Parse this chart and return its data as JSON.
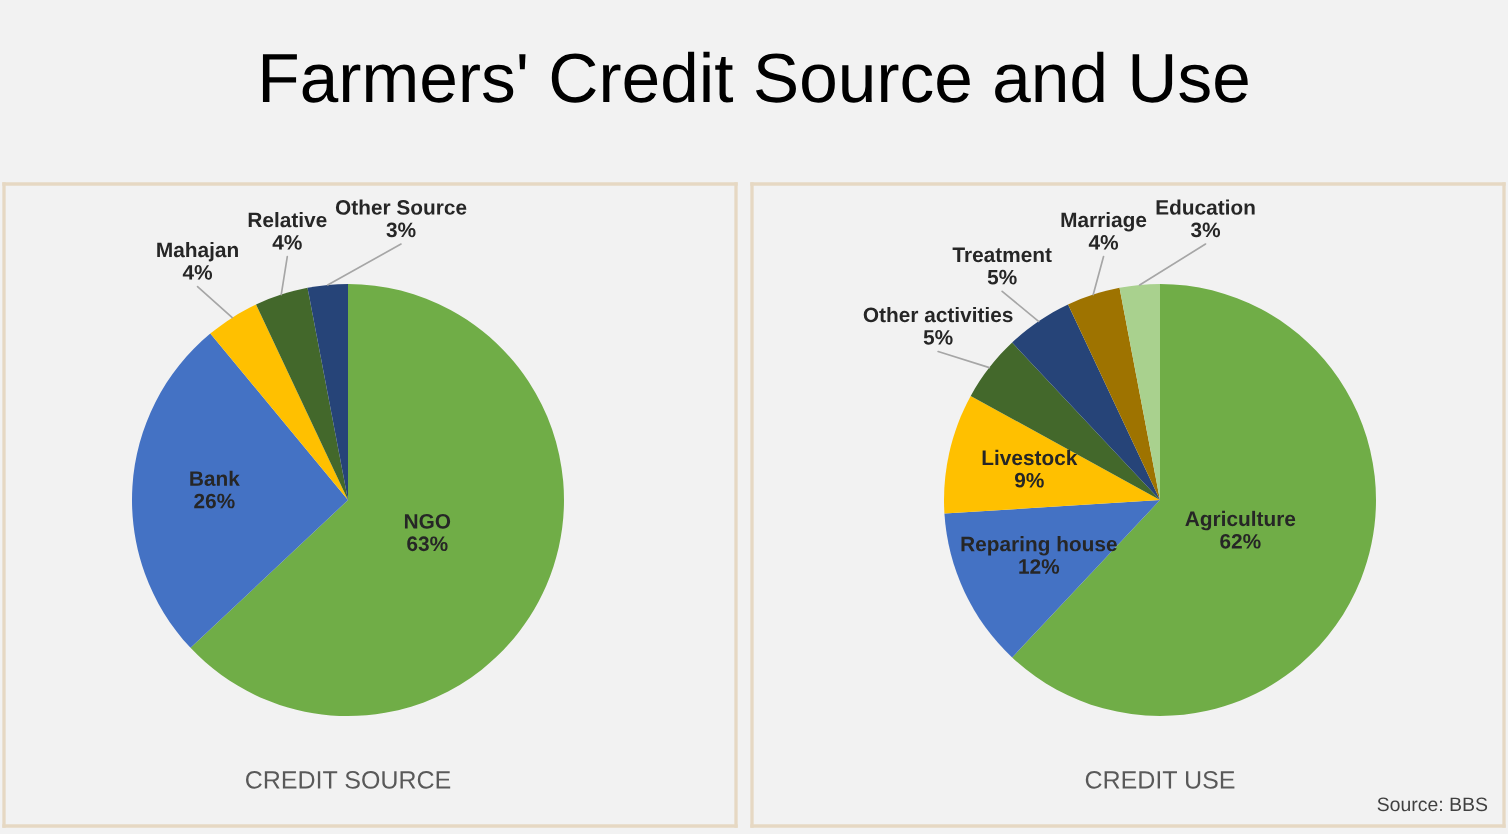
{
  "chart_data": [
    {
      "type": "pie",
      "title": "CREDIT SOURCE",
      "categories": [
        "NGO",
        "Bank",
        "Mahajan",
        "Relative",
        "Other Source"
      ],
      "values": [
        63,
        26,
        4,
        4,
        3
      ],
      "value_labels": [
        "63%",
        "26%",
        "4%",
        "4%",
        "3%"
      ],
      "colors": [
        "#70ad47",
        "#4472c4",
        "#ffc000",
        "#43682b",
        "#264478"
      ],
      "annotations": [
        "Farmers' Credit Source and Use"
      ]
    },
    {
      "type": "pie",
      "title": "CREDIT USE",
      "categories": [
        "Agriculture",
        "Reparing house",
        "Livestock",
        "Other activities",
        "Treatment",
        "Marriage",
        "Education"
      ],
      "values": [
        62,
        12,
        9,
        5,
        5,
        4,
        3
      ],
      "value_labels": [
        "62%",
        "12%",
        "9%",
        "5%",
        "5%",
        "4%",
        "3%"
      ],
      "colors": [
        "#70ad47",
        "#4472c4",
        "#ffc000",
        "#43682b",
        "#264478",
        "#9e7300",
        "#a9d18e"
      ],
      "annotations": [
        "Source: BBS"
      ]
    }
  ]
}
